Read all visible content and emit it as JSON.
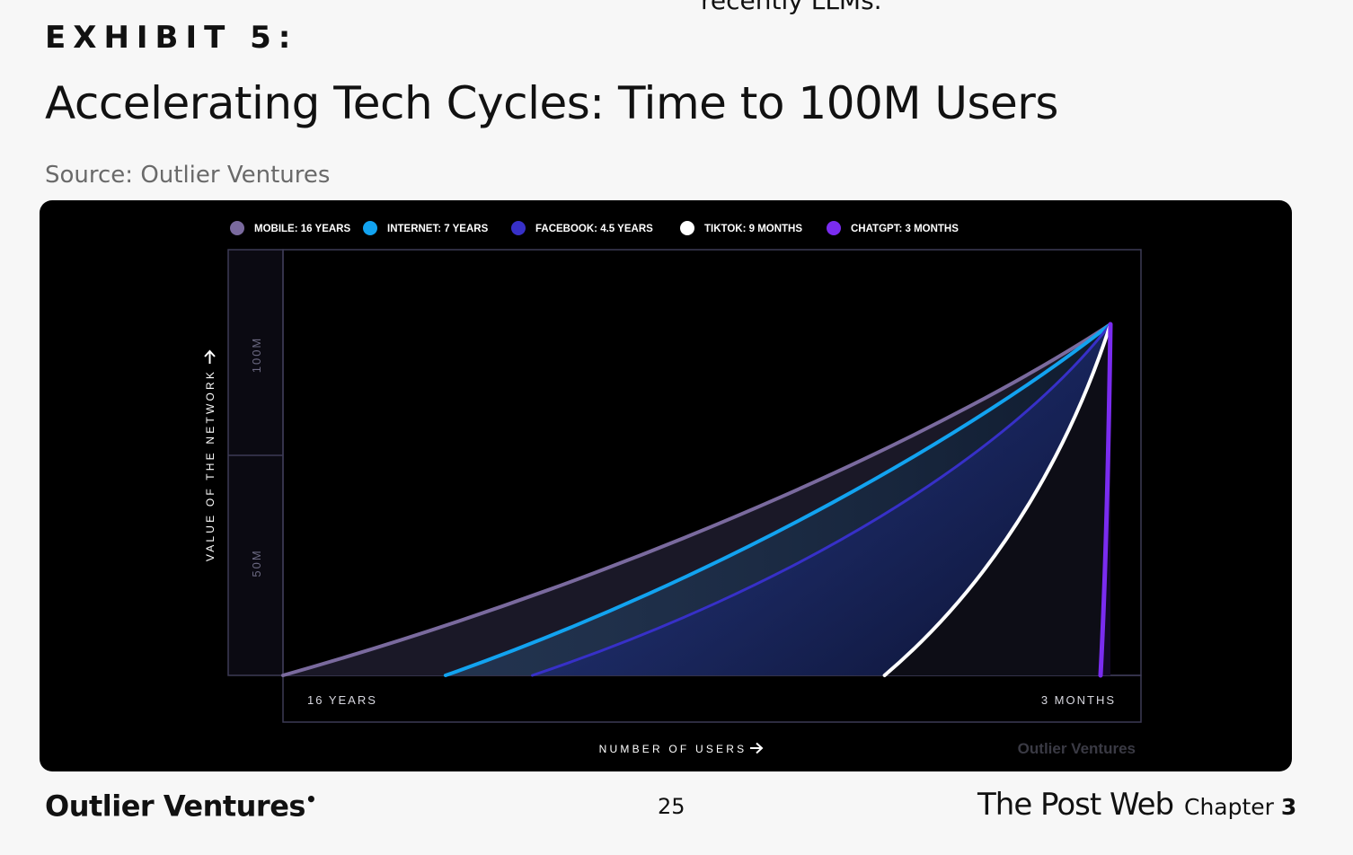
{
  "header": {
    "cutoff_text": "recently LLMs.",
    "exhibit": "EXHIBIT 5:",
    "title": "Accelerating Tech Cycles: Time to 100M Users",
    "source": "Source: Outlier Ventures"
  },
  "footer": {
    "brand": "Outlier Ventures",
    "page_number": "25",
    "publication": "The Post Web",
    "chapter_label": "Chapter",
    "chapter_number": "3"
  },
  "colors": {
    "mobile": "#7a6a9e",
    "internet": "#12a3f0",
    "facebook": "#3730c8",
    "tiktok": "#ffffff",
    "chatgpt": "#7a2cf0",
    "panel_background": "#000000",
    "frame": "#3c3a55"
  },
  "chart_data": {
    "type": "area",
    "xlabel": "NUMBER OF USERS",
    "ylabel": "VALUE OF THE NETWORK",
    "y_ticks": [
      "100M",
      "50M"
    ],
    "x_ticks": [
      "16 YEARS",
      "3 MONTHS"
    ],
    "watermark": "Outlier Ventures",
    "series": [
      {
        "name": "MOBILE: 16 YEARS",
        "key": "mobile",
        "months": 192
      },
      {
        "name": "INTERNET: 7 YEARS",
        "key": "internet",
        "months": 84
      },
      {
        "name": "FACEBOOK: 4.5 YEARS",
        "key": "facebook",
        "months": 54
      },
      {
        "name": "TIKTOK: 9 MONTHS",
        "key": "tiktok",
        "months": 9
      },
      {
        "name": "CHATGPT: 3 MONTHS",
        "key": "chatgpt",
        "months": 3
      }
    ]
  }
}
